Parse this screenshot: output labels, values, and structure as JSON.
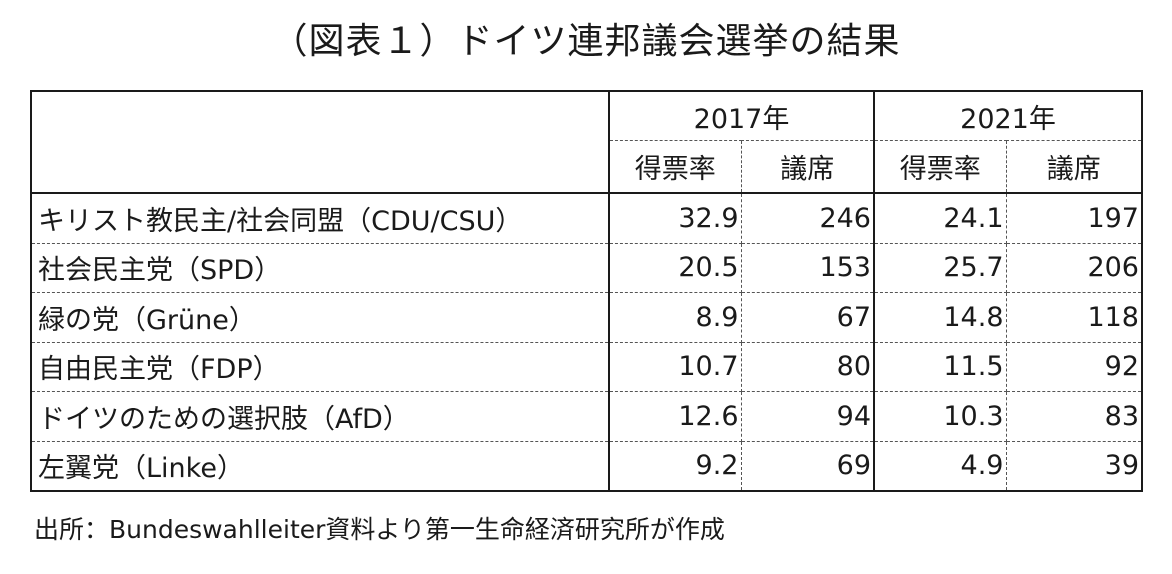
{
  "chart_data": {
    "type": "table",
    "title": "（図表１）ドイツ連邦議会選挙の結果",
    "years": [
      "2017年",
      "2021年"
    ],
    "subheaders": [
      "得票率",
      "議席",
      "得票率",
      "議席"
    ],
    "rows": [
      {
        "party": "キリスト教民主/社会同盟（CDU/CSU）",
        "values": [
          "32.9",
          "246",
          "24.1",
          "197"
        ]
      },
      {
        "party": "社会民主党（SPD）",
        "values": [
          "20.5",
          "153",
          "25.7",
          "206"
        ]
      },
      {
        "party": "緑の党（Grüne）",
        "values": [
          "8.9",
          "67",
          "14.8",
          "118"
        ]
      },
      {
        "party": "自由民主党（FDP）",
        "values": [
          "10.7",
          "80",
          "11.5",
          "92"
        ]
      },
      {
        "party": "ドイツのための選択肢（AfD）",
        "values": [
          "12.6",
          "94",
          "10.3",
          "83"
        ]
      },
      {
        "party": "左翼党（Linke）",
        "values": [
          "9.2",
          "69",
          "4.9",
          "39"
        ]
      }
    ],
    "source": "出所：Bundeswahlleiter資料より第一生命経済研究所が作成"
  }
}
